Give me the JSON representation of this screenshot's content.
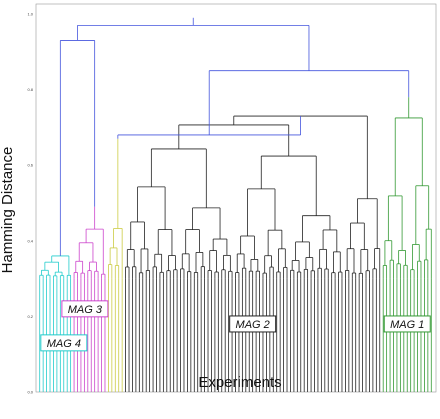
{
  "chart_data": {
    "type": "dendrogram",
    "xlabel": "Experiments",
    "ylabel": "Hamming Distance",
    "ylim": [
      0,
      1.0
    ],
    "yticks": [
      "0.0",
      "0.2",
      "0.4",
      "0.6",
      "0.8",
      "1.0"
    ],
    "grid": false,
    "colors": {
      "MAG 4": "#22cccc",
      "MAG 3": "#cc44cc",
      "MAG 2": "#222222",
      "MAG 1": "#339933",
      "unassigned_yellow": "#cccc44",
      "link": "#4455dd",
      "red_leaf": "#dd3333",
      "green_leaf": "#33aa33"
    },
    "clusters": [
      {
        "label": "MAG 4",
        "color": "#22cccc",
        "leaves": 10,
        "subtree_height": 0.36,
        "merge_height": 0.93
      },
      {
        "label": "MAG 3",
        "color": "#cc44cc",
        "leaves": 10,
        "subtree_height": 0.49,
        "merge_height": 0.94
      },
      {
        "label": "",
        "color": "#cccc44",
        "leaves": 5,
        "subtree_height": 0.67,
        "merge_height": 0.68
      },
      {
        "label": "MAG 2",
        "color": "#222222",
        "leaves": 75,
        "subtree_height": 0.73,
        "merge_height": 0.85
      },
      {
        "label": "MAG 1",
        "color": "#339933",
        "leaves": 15,
        "subtree_height": 0.78,
        "merge_height": 0.85
      }
    ],
    "root_height": 0.97,
    "leaf_height": 0.3
  }
}
